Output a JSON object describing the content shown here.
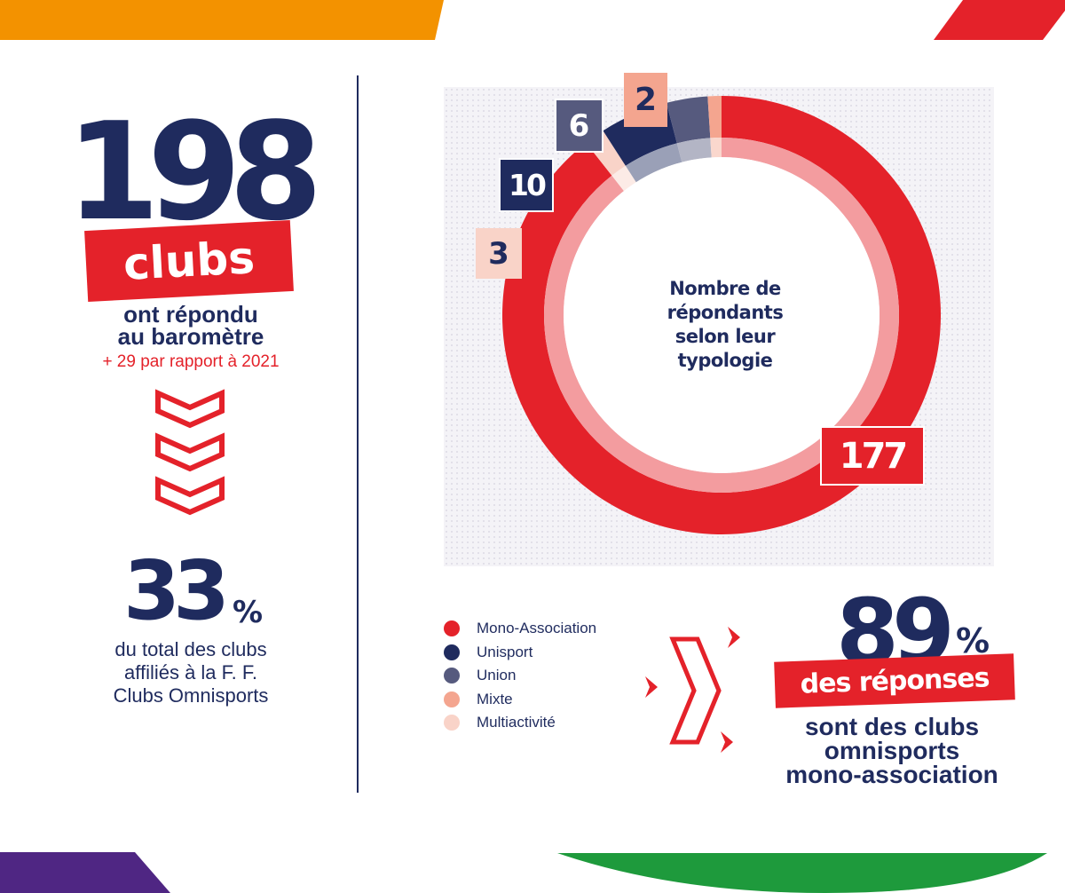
{
  "left": {
    "count": "198",
    "count_unit": "clubs",
    "answered": "ont répondu",
    "answered2": "au baromètre",
    "comparison": "+ 29 par rapport à 2021",
    "share_value": "33",
    "share_unit": "%",
    "share_line1": "du total des clubs",
    "share_line2": "affiliés à la F. F.",
    "share_line3": "Clubs Omnisports"
  },
  "colors": {
    "navy": "#1f2b5e",
    "red": "#e4222a",
    "orange": "#f39200",
    "purple": "#4f2683",
    "green": "#1e9a3c"
  },
  "chart_data": {
    "type": "pie",
    "title": "Nombre de répondants selon leur typologie",
    "title_lines": [
      "Nombre de",
      "répondants",
      "selon leur",
      "typologie"
    ],
    "donut": true,
    "slices": [
      {
        "label": "Mono-Association",
        "value": 177,
        "color": "#e4222a"
      },
      {
        "label": "Multiactivité",
        "value": 3,
        "color": "#f9d3c8"
      },
      {
        "label": "Unisport",
        "value": 10,
        "color": "#1f2b5e"
      },
      {
        "label": "Union",
        "value": 6,
        "color": "#565a7e"
      },
      {
        "label": "Mixte",
        "value": 2,
        "color": "#f4a58f"
      }
    ],
    "legend": [
      {
        "label": "Mono-Association",
        "color": "#e4222a"
      },
      {
        "label": "Unisport",
        "color": "#1f2b5e"
      },
      {
        "label": "Union",
        "color": "#565a7e"
      },
      {
        "label": "Mixte",
        "color": "#f4a58f"
      },
      {
        "label": "Multiactivité",
        "color": "#f9d3c8"
      }
    ],
    "legend_position": "bottom-left"
  },
  "right": {
    "value": "89",
    "unit": "%",
    "banner": "des réponses",
    "line1": "sont des clubs",
    "line2": "omnisports",
    "line3": "mono-association"
  }
}
